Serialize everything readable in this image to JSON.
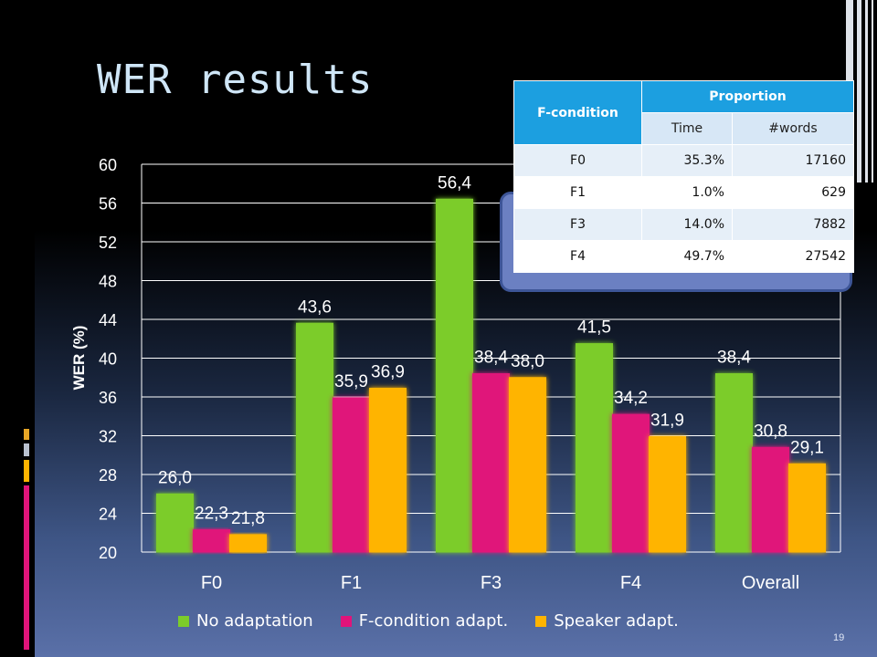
{
  "slide": {
    "title": "WER results",
    "page_number": "19"
  },
  "table": {
    "header_condition": "F-condition",
    "header_proportion": "Proportion",
    "subheaders": [
      "Time",
      "#words"
    ],
    "rows": [
      {
        "condition": "F0",
        "time": "35.3%",
        "words": "17160"
      },
      {
        "condition": "F1",
        "time": "1.0%",
        "words": "629"
      },
      {
        "condition": "F3",
        "time": "14.0%",
        "words": "7882"
      },
      {
        "condition": "F4",
        "time": "49.7%",
        "words": "27542"
      }
    ]
  },
  "chart_data": {
    "type": "bar",
    "categories": [
      "F0",
      "F1",
      "F3",
      "F4",
      "Overall"
    ],
    "ylabel": "WER (%)",
    "ylim": [
      20,
      60
    ],
    "yticks": [
      20,
      24,
      28,
      32,
      36,
      40,
      44,
      48,
      52,
      56,
      60
    ],
    "grid": true,
    "legend_position": "bottom",
    "series": [
      {
        "name": "No adaptation",
        "color": "#7ccc2a",
        "values": [
          26.0,
          43.6,
          56.4,
          41.5,
          38.4
        ],
        "labels": [
          "26,0",
          "43,6",
          "56,4",
          "41,5",
          "38,4"
        ]
      },
      {
        "name": "F-condition adapt.",
        "color": "#e0147a",
        "values": [
          22.3,
          35.9,
          38.4,
          34.2,
          30.8
        ],
        "labels": [
          "22,3",
          "35,9",
          "38,4",
          "34,2",
          "30,8"
        ]
      },
      {
        "name": "Speaker adapt.",
        "color": "#ffb400",
        "values": [
          21.8,
          36.9,
          38.0,
          31.9,
          29.1
        ],
        "labels": [
          "21,8",
          "36,9",
          "38,0",
          "31,9",
          "29,1"
        ]
      }
    ]
  }
}
